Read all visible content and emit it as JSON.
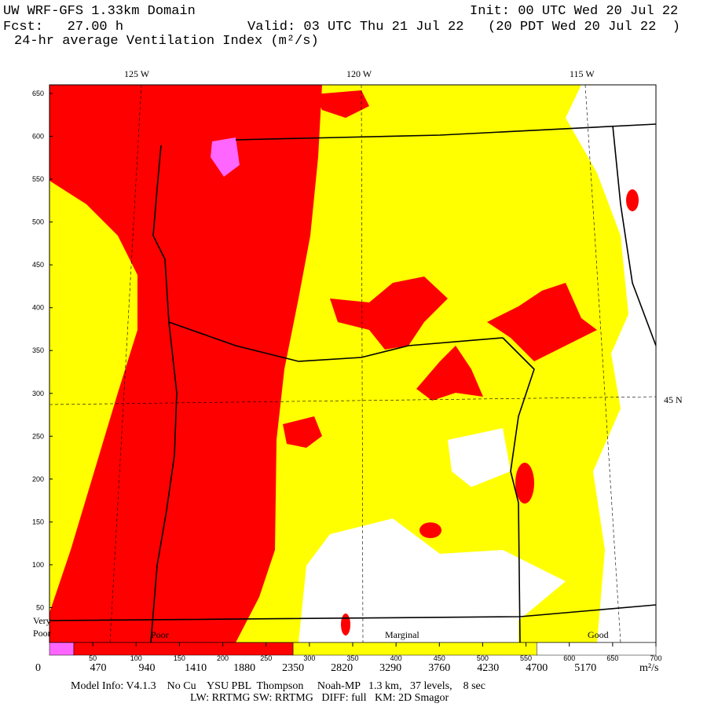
{
  "header": {
    "title": "UW WRF-GFS 1.33km Domain",
    "init": "Init: 00 UTC Wed 20 Jul 22",
    "forecast": "Fcst:   27.00 h",
    "valid": "Valid: 03 UTC Thu 21 Jul 22   (20 PDT Wed 20 Jul 22  )",
    "field": "24-hr average Ventilation Index (m²/s)"
  },
  "map": {
    "longitudes": [
      "125 W",
      "120 W",
      "115 W"
    ],
    "latitude": "45 N",
    "xlim": [
      0,
      700
    ],
    "xticks": [
      50,
      100,
      150,
      200,
      250,
      300,
      350,
      400,
      450,
      500,
      550,
      600,
      650,
      700
    ],
    "ylim": [
      0,
      650
    ],
    "yticks": [
      650,
      600,
      550,
      500,
      450,
      400,
      350,
      300,
      250,
      200,
      150,
      100,
      50
    ]
  },
  "legend": {
    "categories": [
      "Very",
      "Poor",
      "Poor",
      "Marginal",
      "Good"
    ],
    "range": [
      0,
      5850
    ],
    "segments": [
      {
        "to": 235,
        "color": "#ff66ff"
      },
      {
        "to": 2350,
        "color": "#ff0000"
      },
      {
        "to": 4700,
        "color": "#ffff00"
      },
      {
        "to": 5850,
        "color": "#ffffff"
      }
    ],
    "ticks": [
      0,
      470,
      940,
      1410,
      1880,
      2350,
      2820,
      3290,
      3760,
      4230,
      4700,
      5170
    ],
    "unit": "m²/s"
  },
  "footer": {
    "line1": "Model Info: V4.1.3    No Cu    YSU PBL  Thompson     Noah-MP   1.3 km,   37 levels,    8 sec",
    "line2": "LW: RRTMG SW: RRTMG   DIFF: full   KM: 2D Smagor"
  }
}
